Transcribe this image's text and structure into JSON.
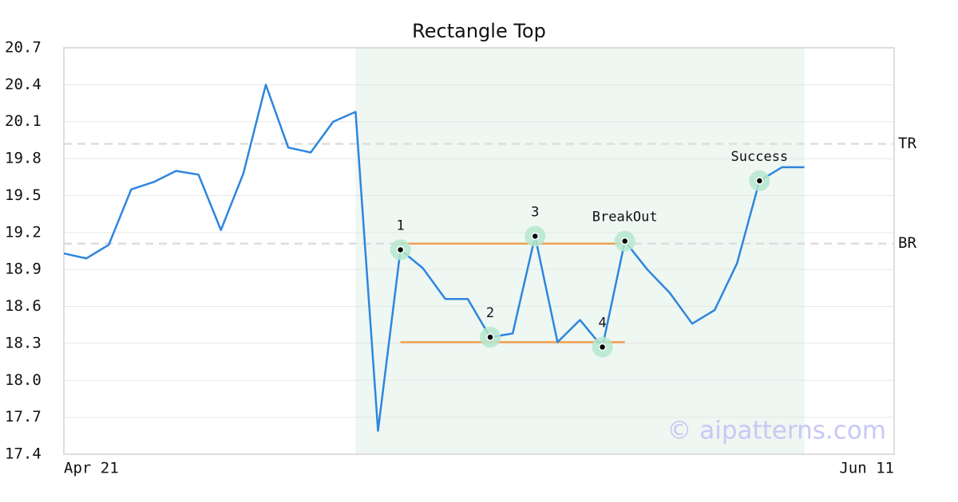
{
  "chart_data": {
    "type": "line",
    "title": "Rectangle Top",
    "categories": [
      "Apr 21",
      null,
      null,
      null,
      null,
      null,
      null,
      null,
      null,
      null,
      null,
      null,
      null,
      null,
      null,
      null,
      null,
      null,
      null,
      null,
      null,
      null,
      null,
      null,
      null,
      null,
      null,
      null,
      null,
      null,
      null,
      null,
      null,
      null,
      null,
      null,
      null,
      "Jun 11"
    ],
    "series": [
      {
        "color": "#2e86de",
        "values": [
          19.03,
          18.99,
          19.1,
          19.55,
          19.61,
          19.7,
          19.67,
          19.22,
          19.68,
          20.4,
          19.89,
          19.85,
          20.1,
          20.18,
          17.59,
          19.06,
          18.91,
          18.66,
          18.66,
          18.35,
          18.38,
          19.17,
          18.31,
          18.49,
          18.27,
          19.13,
          18.9,
          18.71,
          18.46,
          18.57,
          18.95,
          19.62,
          19.73,
          19.73,
          null,
          null,
          null,
          null
        ]
      }
    ],
    "ylim": [
      17.4,
      20.7
    ],
    "yticks": [
      17.4,
      17.7,
      {
        "value": 18,
        "label": "18.0"
      },
      18.3,
      18.6,
      18.9,
      19.2,
      19.5,
      19.8,
      20.1,
      20.4,
      20.7
    ],
    "grid": true,
    "reference_lines": [
      {
        "label": "TR",
        "value": 19.92
      },
      {
        "label": "BR",
        "value": 19.11
      }
    ],
    "highlight": {
      "from": 13,
      "to": 33,
      "color": "#eef7f2"
    },
    "rectangle": {
      "top": 19.11,
      "bottom": 18.31,
      "from": 15,
      "to": 25,
      "color": "#f0a050"
    },
    "annotations": [
      {
        "label": "1",
        "index": 15
      },
      {
        "label": "2",
        "index": 19
      },
      {
        "label": "3",
        "index": 21
      },
      {
        "label": "4",
        "index": 24
      },
      {
        "label": "BreakOut",
        "index": 25
      },
      {
        "label": "Success",
        "index": 31
      }
    ],
    "watermark": "© aipatterns.com"
  }
}
